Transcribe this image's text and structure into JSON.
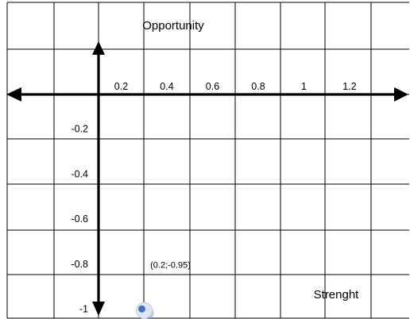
{
  "chart_data": {
    "type": "scatter",
    "title": "Opportunity",
    "xlabel": "Strenght",
    "ylabel": "",
    "xlim": [
      -0.4,
      1.4
    ],
    "ylim": [
      -1,
      0
    ],
    "x_ticks": [
      0.2,
      0.4,
      0.6,
      0.8,
      1,
      1.2
    ],
    "x_tick_labels": [
      "0.2",
      "0.4",
      "0.6",
      "0.8",
      "1",
      "1.2"
    ],
    "y_ticks": [
      -0.2,
      -0.4,
      -0.6,
      -0.8,
      -1
    ],
    "y_tick_labels": [
      "-0.2",
      "-0.4",
      "-0.6",
      "-0.8",
      "-1"
    ],
    "grid": true,
    "points": [
      {
        "x": 0.2,
        "y": -0.95,
        "label": "(0.2;-0.95)"
      }
    ],
    "colors": {
      "grid": "#000000",
      "axis": "#000000",
      "point_fill": "#4472c4",
      "point_shadow": "#7f9fd4"
    }
  }
}
